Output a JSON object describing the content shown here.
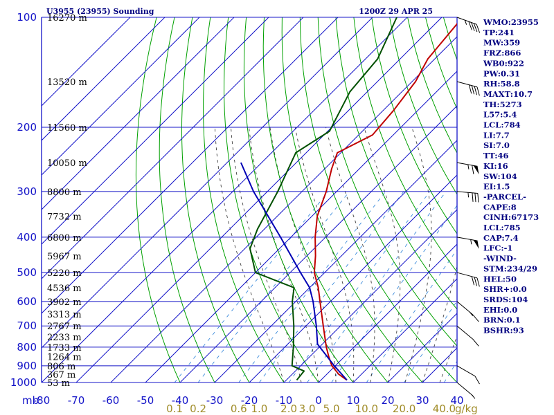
{
  "header": {
    "station_title": "U3955 (23955) Sounding",
    "valid_time": "1200Z 29 APR 25"
  },
  "axes": {
    "pressure_unit": "mb",
    "mixing_ratio_unit": "g/kg",
    "pressure_ticks": [
      100,
      200,
      300,
      400,
      500,
      600,
      700,
      800,
      900,
      1000
    ],
    "temperature_ticks": [
      -80,
      -70,
      -60,
      -50,
      -40,
      -30,
      -20,
      -10,
      0,
      10,
      20,
      30,
      40
    ],
    "mixing_ratio_ticks": [
      {
        "label": "0.1",
        "value": 0.1
      },
      {
        "label": "0.2",
        "value": 0.2
      },
      {
        "label": "0.6",
        "value": 0.6
      },
      {
        "label": "1.0",
        "value": 1.0
      },
      {
        "label": "2.0",
        "value": 2.0
      },
      {
        "label": "3.0",
        "value": 3.0
      },
      {
        "label": "5.0",
        "value": 5.0
      },
      {
        "label": "10.0",
        "value": 10.0
      },
      {
        "label": "20.0",
        "value": 20.0
      },
      {
        "label": "40.0",
        "value": 40.0
      }
    ]
  },
  "heights": [
    {
      "p": 100,
      "label": "16270 m"
    },
    {
      "p": 150,
      "label": "13520 m"
    },
    {
      "p": 200,
      "label": "11560 m"
    },
    {
      "p": 250,
      "label": "10050 m"
    },
    {
      "p": 300,
      "label": "8800 m"
    },
    {
      "p": 350,
      "label": "7732 m"
    },
    {
      "p": 400,
      "label": "6800 m"
    },
    {
      "p": 450,
      "label": "5967 m"
    },
    {
      "p": 500,
      "label": "5220 m"
    },
    {
      "p": 550,
      "label": "4536 m"
    },
    {
      "p": 600,
      "label": "3902 m"
    },
    {
      "p": 650,
      "label": "3313 m"
    },
    {
      "p": 700,
      "label": "2767 m"
    },
    {
      "p": 750,
      "label": "2233 m"
    },
    {
      "p": 800,
      "label": "1733 m"
    },
    {
      "p": 850,
      "label": "1264 m"
    },
    {
      "p": 900,
      "label": "806 m"
    },
    {
      "p": 950,
      "label": "367 m"
    },
    {
      "p": 1000,
      "label": "53 m"
    }
  ],
  "indices": [
    "WMO:23955",
    "TP:241",
    "MW:359",
    "FRZ:866",
    "WB0:922",
    "PW:0.31",
    "RH:58.8",
    "MAXT:10.7",
    "TH:5273",
    "L57:5.4",
    "LCL:784",
    "LI:7.7",
    "SI:7.0",
    "TT:46",
    "KI:16",
    "SW:104",
    "EI:1.5",
    "-PARCEL-",
    "CAPE:8",
    "CINH:67173",
    "LCL:785",
    "CAP:7.4",
    "LFC:-1",
    "-WIND-",
    "STM:234/29",
    "HEL:50",
    "SHR+:0.0",
    "SRDS:104",
    "EHI:0.0",
    "BRN:0.1",
    "BSHR:93"
  ],
  "colors": {
    "grid": "#1414c8",
    "dry_adiabat": "#00a000",
    "moist_adiabat": "#404040",
    "mixing_ratio": "#3c8cdc",
    "temperature": "#c00000",
    "dewpoint": "#005000",
    "parcel": "#0000b4"
  },
  "chart_data": {
    "type": "line",
    "title": "U3955 (23955) Sounding",
    "xlabel": "",
    "ylabel": "mb",
    "xlim": [
      -80,
      40
    ],
    "ylim": [
      1000,
      100
    ],
    "y_scale": "log",
    "skew_t": true,
    "grid": true,
    "series": [
      {
        "key": "temperature",
        "points": [
          {
            "p": 985,
            "t": 7.5
          },
          {
            "p": 950,
            "t": 3.5
          },
          {
            "p": 900,
            "t": -1.0
          },
          {
            "p": 850,
            "t": -4.5
          },
          {
            "p": 800,
            "t": -8.0
          },
          {
            "p": 700,
            "t": -15.0
          },
          {
            "p": 600,
            "t": -23.0
          },
          {
            "p": 550,
            "t": -27.5
          },
          {
            "p": 500,
            "t": -33.0
          },
          {
            "p": 450,
            "t": -37.5
          },
          {
            "p": 400,
            "t": -43.0
          },
          {
            "p": 350,
            "t": -48.5
          },
          {
            "p": 300,
            "t": -53.0
          },
          {
            "p": 260,
            "t": -58.0
          },
          {
            "p": 235,
            "t": -61.0
          },
          {
            "p": 210,
            "t": -56.0
          },
          {
            "p": 180,
            "t": -57.0
          },
          {
            "p": 150,
            "t": -59.0
          },
          {
            "p": 130,
            "t": -62.0
          },
          {
            "p": 100,
            "t": -64.0
          }
        ]
      },
      {
        "key": "dewpoint",
        "points": [
          {
            "p": 985,
            "t": -7.0
          },
          {
            "p": 930,
            "t": -7.5
          },
          {
            "p": 900,
            "t": -12.5
          },
          {
            "p": 800,
            "t": -17.5
          },
          {
            "p": 700,
            "t": -23.5
          },
          {
            "p": 600,
            "t": -31.0
          },
          {
            "p": 550,
            "t": -34.5
          },
          {
            "p": 500,
            "t": -50.0
          },
          {
            "p": 430,
            "t": -58.5
          },
          {
            "p": 380,
            "t": -62.0
          },
          {
            "p": 300,
            "t": -67.0
          },
          {
            "p": 235,
            "t": -73.0
          },
          {
            "p": 205,
            "t": -69.5
          },
          {
            "p": 160,
            "t": -75.0
          },
          {
            "p": 130,
            "t": -76.5
          },
          {
            "p": 100,
            "t": -83.0
          }
        ]
      },
      {
        "key": "parcel",
        "points": [
          {
            "p": 985,
            "t": 7.5
          },
          {
            "p": 900,
            "t": -0.3
          },
          {
            "p": 785,
            "t": -11.4
          },
          {
            "p": 700,
            "t": -17.0
          },
          {
            "p": 600,
            "t": -25.0
          },
          {
            "p": 550,
            "t": -30.0
          },
          {
            "p": 500,
            "t": -37.0
          },
          {
            "p": 400,
            "t": -53.0
          },
          {
            "p": 300,
            "t": -74.0
          },
          {
            "p": 250,
            "t": -86.0
          }
        ]
      }
    ],
    "wind_barbs": [
      {
        "p": 100,
        "dir": 250,
        "kt": 45
      },
      {
        "p": 150,
        "dir": 255,
        "kt": 40
      },
      {
        "p": 250,
        "dir": 260,
        "kt": 65
      },
      {
        "p": 300,
        "dir": 265,
        "kt": 35
      },
      {
        "p": 400,
        "dir": 260,
        "kt": 55
      },
      {
        "p": 500,
        "dir": 255,
        "kt": 30
      },
      {
        "p": 600,
        "dir": 230,
        "kt": 15
      },
      {
        "p": 700,
        "dir": 230,
        "kt": 10
      },
      {
        "p": 900,
        "dir": 240,
        "kt": 10
      },
      {
        "p": 1000,
        "dir": 230,
        "kt": 5
      }
    ]
  }
}
